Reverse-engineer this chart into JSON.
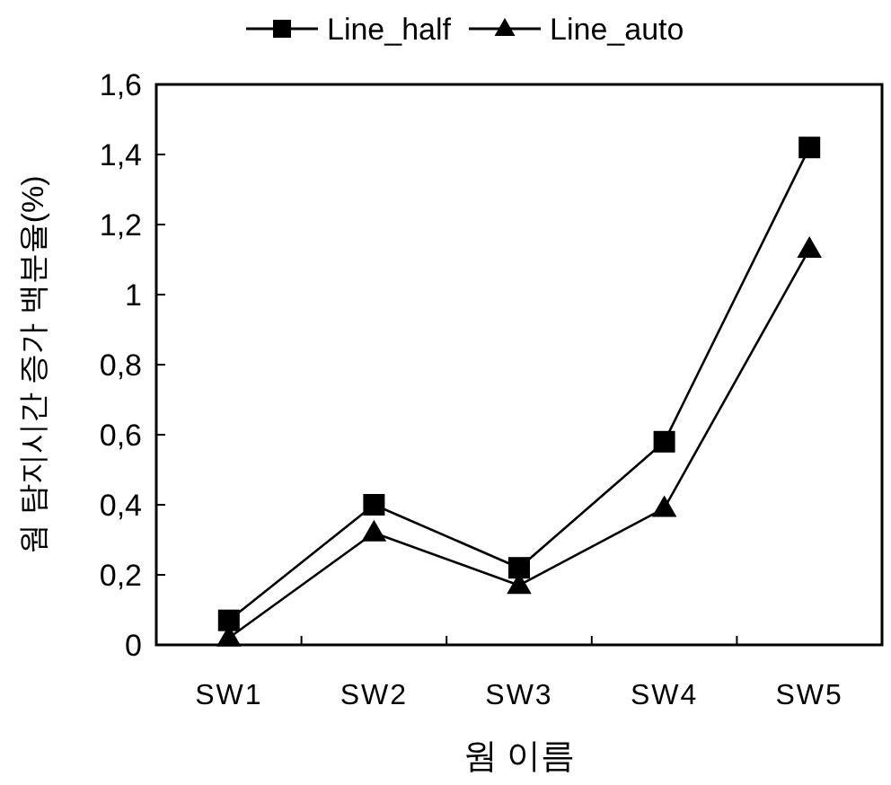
{
  "chart_data": {
    "type": "line",
    "xlabel": "웜 이름",
    "ylabel": "웜 탐지시간 증가 백분율(%)",
    "categories": [
      "SW1",
      "SW2",
      "SW3",
      "SW4",
      "SW5"
    ],
    "series": [
      {
        "name": "Line_half",
        "color": "#000000",
        "marker": "square",
        "values": [
          0.07,
          0.4,
          0.22,
          0.58,
          1.42
        ]
      },
      {
        "name": "Line_auto",
        "color": "#000000",
        "marker": "triangle",
        "values": [
          0.02,
          0.32,
          0.17,
          0.39,
          1.13
        ]
      }
    ],
    "ylim": [
      0,
      1.6
    ],
    "yticks": [
      0,
      {
        "value": 0.2,
        "label": "0,2"
      },
      {
        "value": 0.4,
        "label": "0,4"
      },
      {
        "value": 0.6,
        "label": "0,6"
      },
      {
        "value": 0.8,
        "label": "0,8"
      },
      1,
      {
        "value": 1.2,
        "label": "1,2"
      },
      {
        "value": 1.4,
        "label": "1,4"
      },
      {
        "value": 1.6,
        "label": "1,6"
      }
    ],
    "grid": false,
    "legend": "top",
    "line_style": "solid"
  }
}
